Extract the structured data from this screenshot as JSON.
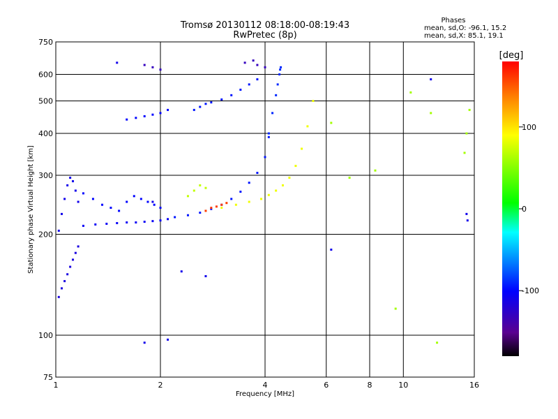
{
  "chart_data": {
    "type": "scatter",
    "title": "Tromsø 20130112 08:18:00-08:19:43",
    "subtitle": "RwPretec (8p)",
    "stats": {
      "heading": "Phases",
      "line_o": "mean, sd,O: -96.1, 15.2",
      "line_x": "mean, sd,X:  85.1, 19.1"
    },
    "xlabel": "Frequency [MHz]",
    "ylabel": "Stationary phase Virtual Height [km]",
    "x_scale": "log",
    "y_scale": "log",
    "xlim": [
      1,
      16
    ],
    "ylim": [
      75,
      750
    ],
    "x_ticks": [
      1,
      2,
      4,
      6,
      8,
      10,
      16
    ],
    "x_tick_labels": [
      "1",
      "2",
      "4",
      "6",
      "8",
      "10",
      "16"
    ],
    "y_ticks": [
      75,
      100,
      200,
      300,
      400,
      500,
      600,
      750
    ],
    "y_tick_labels": [
      "75",
      "100",
      "200",
      "300",
      "400",
      "500",
      "600",
      "750"
    ],
    "x_gridlines": [
      2,
      4,
      6,
      8,
      10
    ],
    "y_gridlines": [
      100,
      200,
      300,
      400,
      500,
      600
    ],
    "grid": true,
    "colorbar": {
      "label": "[deg]",
      "range": [
        -180,
        180
      ],
      "ticks": [
        -100,
        0,
        100
      ],
      "tick_labels": [
        "-100",
        "0",
        "100"
      ],
      "colors": [
        "#000000",
        "#5a0090",
        "#0000ff",
        "#00ffff",
        "#00ff00",
        "#ffff00",
        "#ff8000",
        "#ff0000"
      ]
    },
    "series": [
      {
        "phase": -115,
        "x": [
          1.02,
          1.04,
          1.06,
          1.08,
          1.1,
          1.12,
          1.14,
          1.16
        ],
        "y": [
          130,
          138,
          145,
          152,
          160,
          168,
          176,
          184
        ]
      },
      {
        "phase": -110,
        "x": [
          1.02,
          1.04,
          1.06,
          1.08,
          1.1,
          1.12,
          1.14,
          1.16
        ],
        "y": [
          205,
          230,
          255,
          280,
          295,
          288,
          270,
          250
        ]
      },
      {
        "phase": -105,
        "x": [
          1.2,
          1.3,
          1.4,
          1.5,
          1.6,
          1.7,
          1.8,
          1.9,
          2.0,
          2.1
        ],
        "y": [
          212,
          214,
          215,
          216,
          217,
          217,
          218,
          219,
          220,
          222
        ]
      },
      {
        "phase": -100,
        "x": [
          1.2,
          1.28,
          1.36,
          1.44,
          1.52,
          1.6,
          1.68,
          1.76,
          1.84,
          1.92,
          2.0
        ],
        "y": [
          265,
          255,
          245,
          240,
          235,
          250,
          260,
          255,
          250,
          245,
          240
        ]
      },
      {
        "phase": -95,
        "x": [
          2.2,
          2.4,
          2.6,
          2.8,
          3.0,
          3.2,
          3.4,
          3.6,
          3.8,
          4.0,
          4.1
        ],
        "y": [
          225,
          228,
          232,
          238,
          245,
          255,
          268,
          285,
          305,
          340,
          390
        ]
      },
      {
        "phase": -90,
        "x": [
          4.1,
          4.2,
          4.3,
          4.35,
          4.4,
          4.42,
          4.44
        ],
        "y": [
          400,
          460,
          520,
          560,
          600,
          620,
          630
        ]
      },
      {
        "phase": -100,
        "x": [
          1.6,
          1.7,
          1.8,
          1.9,
          2.0,
          2.1
        ],
        "y": [
          440,
          445,
          450,
          455,
          460,
          470
        ]
      },
      {
        "phase": -95,
        "x": [
          2.5,
          2.6,
          2.7,
          2.8,
          3.0,
          3.2,
          3.4,
          3.6,
          3.8
        ],
        "y": [
          470,
          480,
          490,
          495,
          505,
          520,
          540,
          560,
          580
        ]
      },
      {
        "phase": 85,
        "x": [
          3.0,
          3.3,
          3.6,
          3.9,
          4.1,
          4.3,
          4.5,
          4.7,
          4.9,
          5.1,
          5.3,
          5.5
        ],
        "y": [
          240,
          245,
          250,
          255,
          262,
          270,
          280,
          295,
          320,
          360,
          420,
          500
        ]
      },
      {
        "phase": 70,
        "x": [
          2.4,
          2.5,
          2.6,
          2.7
        ],
        "y": [
          260,
          270,
          280,
          275
        ]
      },
      {
        "phase": 160,
        "x": [
          2.7,
          2.8,
          2.9,
          3.0,
          3.1
        ],
        "y": [
          235,
          240,
          242,
          245,
          248
        ]
      },
      {
        "phase": -130,
        "x": [
          1.8,
          1.9,
          2.0,
          3.5,
          3.7,
          3.8,
          4.0
        ],
        "y": [
          640,
          630,
          620,
          650,
          660,
          640,
          630
        ]
      },
      {
        "phase": 60,
        "x": [
          6.2,
          7.0,
          8.3,
          9.5,
          10.5,
          12.0,
          12.5,
          15.0,
          15.2,
          15.5
        ],
        "y": [
          430,
          295,
          310,
          120,
          530,
          460,
          95,
          350,
          400,
          470
        ]
      },
      {
        "phase": -110,
        "x": [
          1.5,
          1.8,
          1.9,
          2.1,
          2.3,
          2.7,
          6.2,
          12.0,
          15.2,
          15.3
        ],
        "y": [
          650,
          95,
          250,
          97,
          155,
          150,
          180,
          580,
          230,
          220
        ]
      }
    ]
  }
}
